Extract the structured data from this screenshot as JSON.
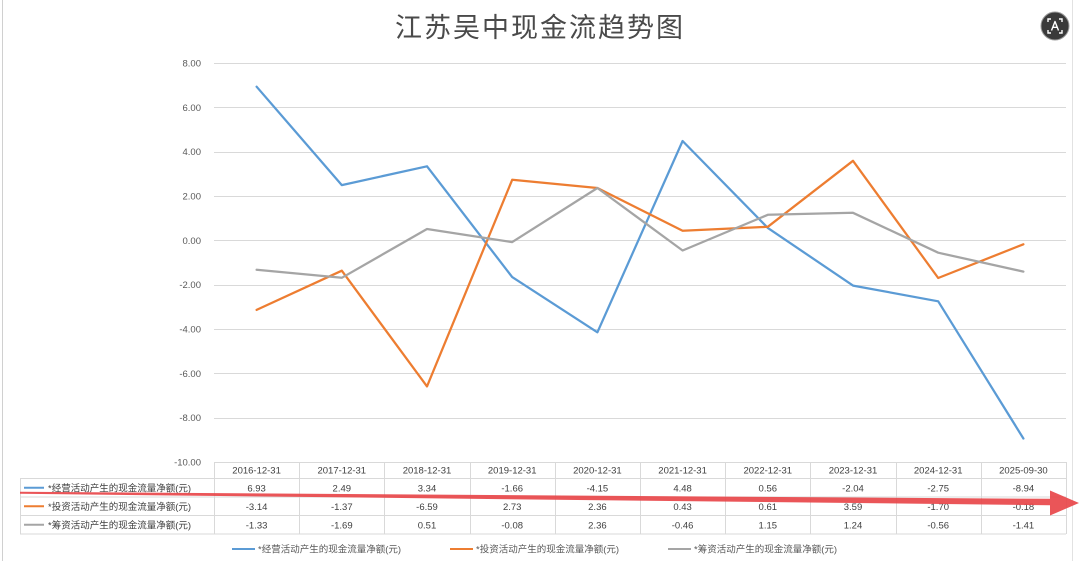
{
  "chart_data": {
    "type": "line",
    "title": "江苏吴中现金流趋势图",
    "categories": [
      "2016-12-31",
      "2017-12-31",
      "2018-12-31",
      "2019-12-31",
      "2020-12-31",
      "2021-12-31",
      "2022-12-31",
      "2023-12-31",
      "2024-12-31",
      "2025-09-30"
    ],
    "series": [
      {
        "name": "*经营活动产生的现金流量净额(元)",
        "color": "#5b9bd5",
        "values": [
          6.93,
          2.49,
          3.34,
          -1.66,
          -4.15,
          4.48,
          0.56,
          -2.04,
          -2.75,
          -8.94
        ]
      },
      {
        "name": "*投资活动产生的现金流量净额(元)",
        "color": "#ed7d31",
        "values": [
          -3.14,
          -1.37,
          -6.59,
          2.73,
          2.36,
          0.43,
          0.61,
          3.59,
          -1.7,
          -0.18
        ]
      },
      {
        "name": "*筹资活动产生的现金流量净额(元)",
        "color": "#a5a5a5",
        "values": [
          -1.33,
          -1.69,
          0.51,
          -0.08,
          2.36,
          -0.46,
          1.15,
          1.24,
          -0.56,
          -1.41
        ]
      }
    ],
    "yticks": [
      8,
      6,
      4,
      2,
      0,
      -2,
      -4,
      -6,
      -8,
      -10
    ],
    "ylim": [
      -10,
      8
    ],
    "grid": true,
    "legend": "bottom",
    "data_table": true
  },
  "colors": {
    "title_text": "#4a4a4a",
    "gridline": "#d9d9d9",
    "annotation_arrow": "#e8474a"
  },
  "icons": {
    "top_right": "text-recognition-icon",
    "annotation": "red-arrow"
  }
}
